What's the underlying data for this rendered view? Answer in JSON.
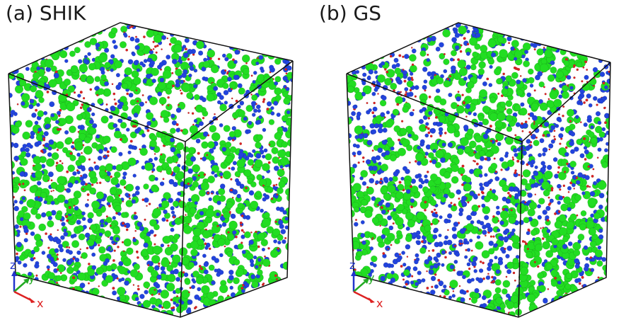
{
  "panels": [
    {
      "label": "(a) SHIK",
      "style": "mixed"
    },
    {
      "label": "(b) GS",
      "style": "clustered"
    }
  ],
  "axes": {
    "z": "z",
    "y": "y",
    "x": "x"
  },
  "colors": {
    "large_atom": "#22dd22",
    "medium_atom": "#2244dd",
    "small_atom": "#dd2222",
    "box_edge": "#111111",
    "axis_z": "#2233cc",
    "axis_y": "#22aa22",
    "axis_x": "#dd2222"
  }
}
